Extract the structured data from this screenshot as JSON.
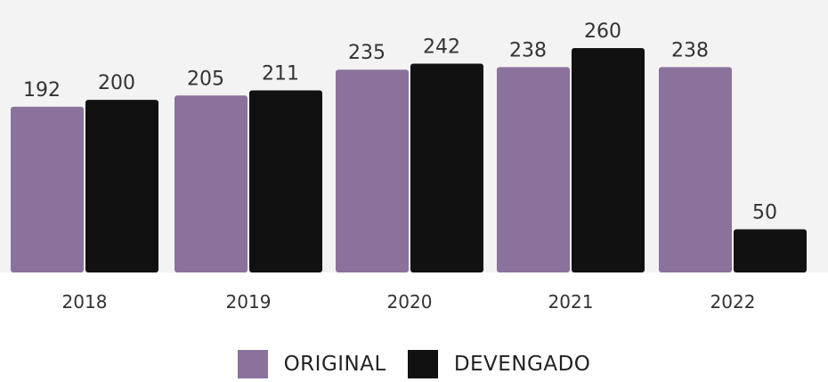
{
  "chart_data": {
    "type": "bar",
    "categories": [
      "2018",
      "2019",
      "2020",
      "2021",
      "2022"
    ],
    "series": [
      {
        "name": "ORIGINAL",
        "color": "#8b729d",
        "values": [
          192,
          205,
          235,
          238,
          238
        ]
      },
      {
        "name": "DEVENGADO",
        "color": "#111111",
        "values": [
          200,
          211,
          242,
          260,
          50
        ]
      }
    ],
    "ylim": [
      0,
      260
    ],
    "grid": false,
    "legend": "bottom-center"
  }
}
